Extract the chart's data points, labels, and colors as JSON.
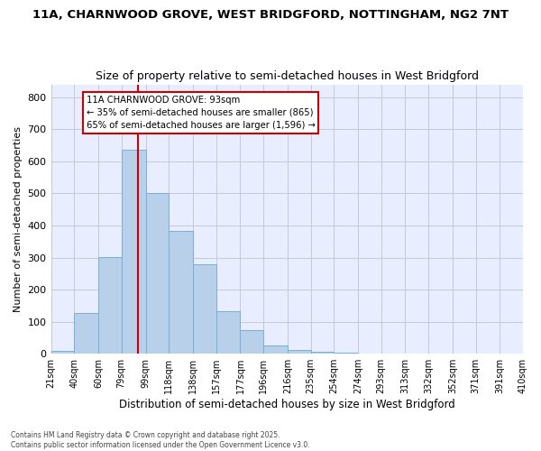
{
  "title_line1": "11A, CHARNWOOD GROVE, WEST BRIDGFORD, NOTTINGHAM, NG2 7NT",
  "title_line2": "Size of property relative to semi-detached houses in West Bridgford",
  "xlabel": "Distribution of semi-detached houses by size in West Bridgford",
  "ylabel": "Number of semi-detached properties",
  "bin_labels": [
    "21sqm",
    "40sqm",
    "60sqm",
    "79sqm",
    "99sqm",
    "118sqm",
    "138sqm",
    "157sqm",
    "177sqm",
    "196sqm",
    "216sqm",
    "235sqm",
    "254sqm",
    "274sqm",
    "293sqm",
    "313sqm",
    "332sqm",
    "352sqm",
    "371sqm",
    "391sqm",
    "410sqm"
  ],
  "bin_edges": [
    21,
    40,
    60,
    79,
    99,
    118,
    138,
    157,
    177,
    196,
    216,
    235,
    254,
    274,
    293,
    313,
    332,
    352,
    371,
    391,
    410
  ],
  "bar_heights": [
    10,
    128,
    302,
    637,
    502,
    383,
    278,
    132,
    73,
    26,
    13,
    5,
    4,
    0,
    0,
    0,
    0,
    0,
    0,
    0
  ],
  "bar_color": "#b8d0ea",
  "bar_edge_color": "#7aaed6",
  "property_size": 93,
  "property_line_color": "#cc0000",
  "annotation_line1": "11A CHARNWOOD GROVE: 93sqm",
  "annotation_line2": "← 35% of semi-detached houses are smaller (865)",
  "annotation_line3": "65% of semi-detached houses are larger (1,596) →",
  "annotation_box_color": "#cc0000",
  "ylim": [
    0,
    840
  ],
  "yticks": [
    0,
    100,
    200,
    300,
    400,
    500,
    600,
    700,
    800
  ],
  "grid_color": "#c8c8d0",
  "bg_color": "#e8eeff",
  "fig_bg_color": "#ffffff",
  "footnote": "Contains HM Land Registry data © Crown copyright and database right 2025.\nContains public sector information licensed under the Open Government Licence v3.0."
}
